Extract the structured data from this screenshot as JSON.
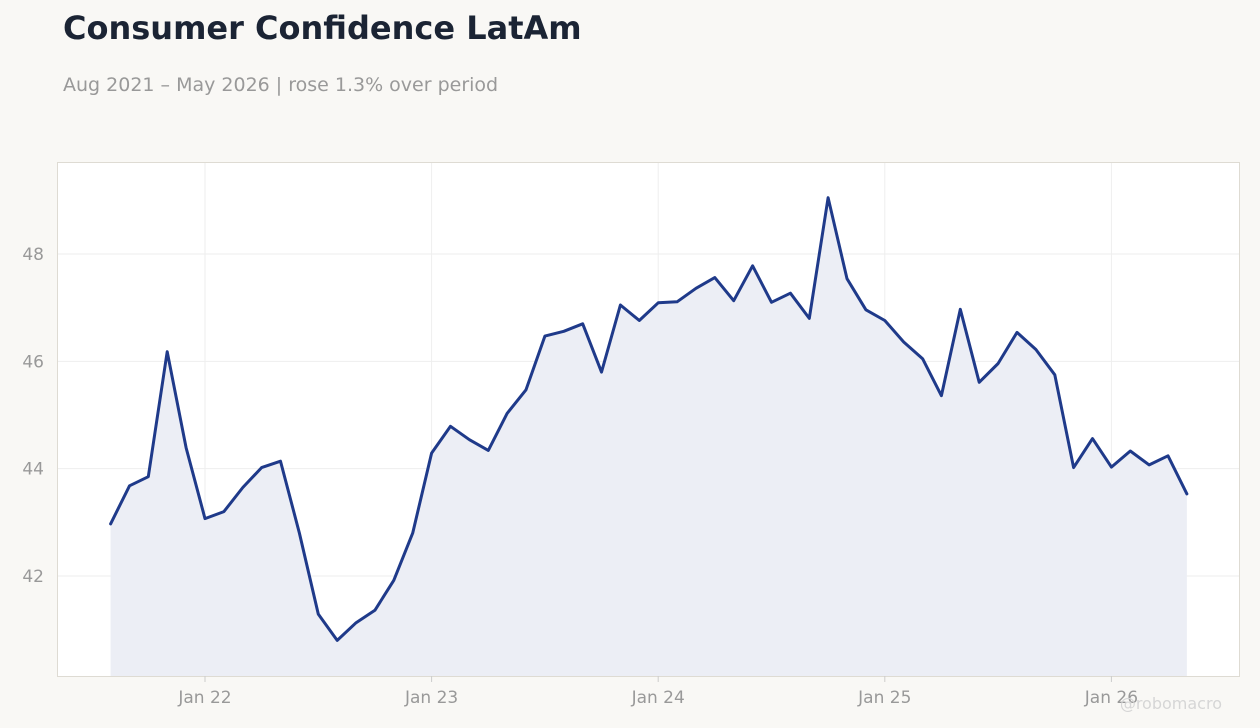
{
  "title": "Consumer Confidence LatAm",
  "subtitle": "Aug 2021 – May 2026 | rose 1.3% over period",
  "watermark": "@robomacro",
  "colors": {
    "background": "#f9f8f5",
    "line": "#1f3a8a",
    "area_fill": "#eceef5",
    "grid": "#eeeeee",
    "tick_text": "#999999",
    "title_text": "#1b2434"
  },
  "chart_data": {
    "type": "area",
    "x": [
      "2021-08",
      "2021-09",
      "2021-10",
      "2021-11",
      "2021-12",
      "2022-01",
      "2022-02",
      "2022-03",
      "2022-04",
      "2022-05",
      "2022-06",
      "2022-07",
      "2022-08",
      "2022-09",
      "2022-10",
      "2022-11",
      "2022-12",
      "2023-01",
      "2023-02",
      "2023-03",
      "2023-04",
      "2023-05",
      "2023-06",
      "2023-07",
      "2023-08",
      "2023-09",
      "2023-10",
      "2023-11",
      "2023-12",
      "2024-01",
      "2024-02",
      "2024-03",
      "2024-04",
      "2024-05",
      "2024-06",
      "2024-07",
      "2024-08",
      "2024-09",
      "2024-10",
      "2024-11",
      "2024-12",
      "2025-01",
      "2025-02",
      "2025-03",
      "2025-04",
      "2025-05",
      "2025-06",
      "2025-07",
      "2025-08",
      "2025-09",
      "2025-10",
      "2025-11",
      "2025-12",
      "2026-01",
      "2026-02",
      "2026-03",
      "2026-04",
      "2026-05"
    ],
    "series": [
      {
        "values": [
          42.97,
          43.68,
          43.85,
          46.18,
          44.39,
          43.07,
          43.2,
          43.65,
          44.02,
          44.14,
          42.8,
          41.29,
          40.8,
          41.13,
          41.36,
          41.92,
          42.8,
          44.29,
          44.79,
          44.54,
          44.34,
          45.03,
          45.47,
          46.47,
          46.56,
          46.7,
          45.8,
          47.05,
          46.76,
          47.09,
          47.11,
          47.36,
          47.56,
          47.13,
          47.78,
          47.1,
          47.27,
          46.8,
          49.05,
          47.54,
          46.96,
          46.76,
          46.36,
          46.05,
          45.36,
          46.97,
          45.61,
          45.96,
          46.54,
          46.22,
          45.75,
          44.02,
          44.56,
          44.03,
          44.33,
          44.07,
          44.24,
          43.53
        ]
      }
    ],
    "x_ticks": [
      "Jan 22",
      "Jan 23",
      "Jan 24",
      "Jan 25",
      "Jan 26"
    ],
    "y_ticks": [
      "42",
      "44",
      "46",
      "48"
    ],
    "ylim": [
      40.2,
      49.8
    ],
    "grid": true
  }
}
